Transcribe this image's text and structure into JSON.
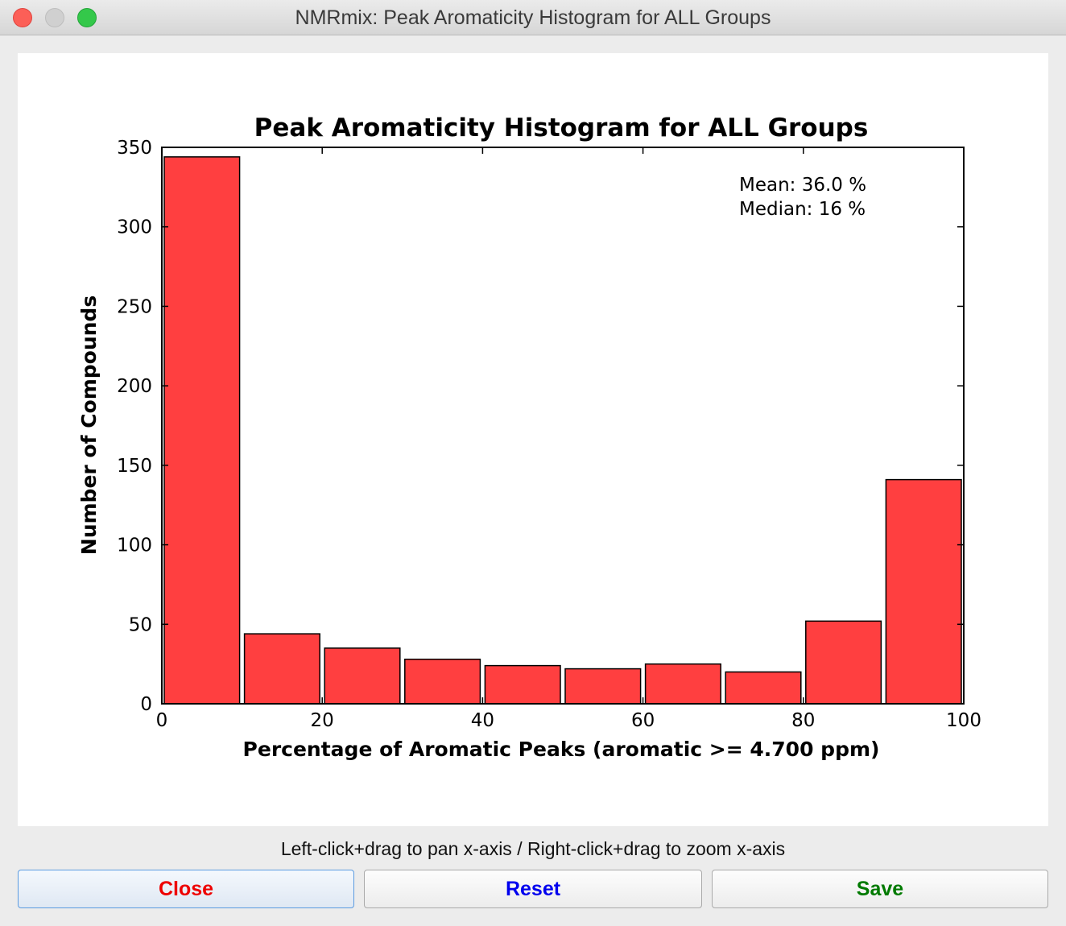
{
  "window": {
    "title": "NMRmix: Peak Aromaticity Histogram for ALL Groups"
  },
  "chart_data": {
    "type": "bar",
    "title": "Peak Aromaticity Histogram for ALL Groups",
    "xlabel": "Percentage of Aromatic Peaks (aromatic >= 4.700 ppm)",
    "ylabel": "Number of Compounds",
    "xlim": [
      0,
      100
    ],
    "ylim": [
      0,
      350
    ],
    "xticks": [
      0,
      20,
      40,
      60,
      80,
      100
    ],
    "yticks": [
      0,
      50,
      100,
      150,
      200,
      250,
      300,
      350
    ],
    "bins": [
      {
        "start": 0,
        "end": 10,
        "value": 344
      },
      {
        "start": 10,
        "end": 20,
        "value": 44
      },
      {
        "start": 20,
        "end": 30,
        "value": 35
      },
      {
        "start": 30,
        "end": 40,
        "value": 28
      },
      {
        "start": 40,
        "end": 50,
        "value": 24
      },
      {
        "start": 50,
        "end": 60,
        "value": 22
      },
      {
        "start": 60,
        "end": 70,
        "value": 25
      },
      {
        "start": 70,
        "end": 80,
        "value": 20
      },
      {
        "start": 80,
        "end": 90,
        "value": 52
      },
      {
        "start": 90,
        "end": 100,
        "value": 141
      }
    ],
    "bar_color": "#ff3f40",
    "grid": false,
    "annotations": [
      "Mean: 36.0 %",
      "Median: 16 %"
    ]
  },
  "hint": "Left-click+drag to pan x-axis / Right-click+drag to zoom x-axis",
  "buttons": {
    "close": {
      "label": "Close",
      "color": "#ee0000"
    },
    "reset": {
      "label": "Reset",
      "color": "#0000ee"
    },
    "save": {
      "label": "Save",
      "color": "#007a00"
    }
  }
}
